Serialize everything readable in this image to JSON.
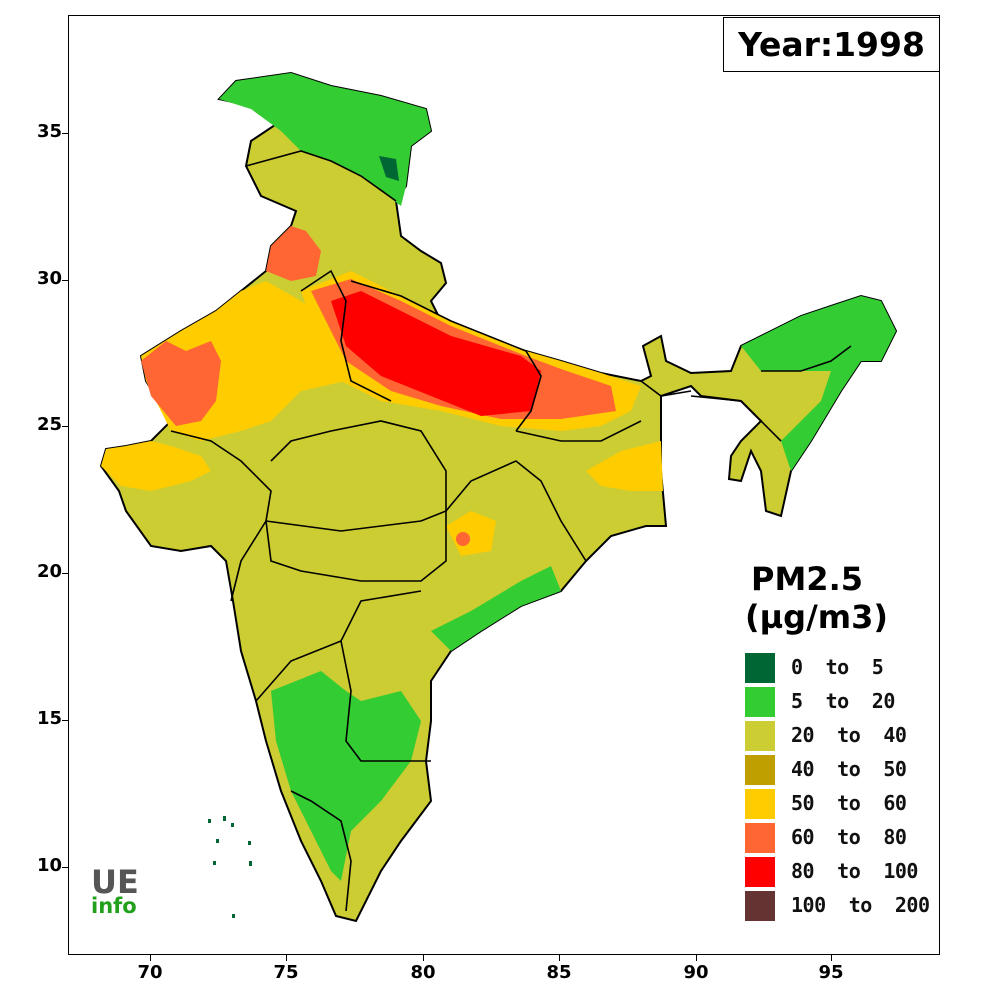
{
  "year_label": "Year:1998",
  "legend": {
    "title_line1": "PM2.5",
    "title_line2": "(µg/m3)",
    "items": [
      {
        "label": "0  to  5",
        "color": "#006633"
      },
      {
        "label": "5  to  20",
        "color": "#33cc33"
      },
      {
        "label": "20  to  40",
        "color": "#cccc33"
      },
      {
        "label": "40  to  50",
        "color": "#bf9f00"
      },
      {
        "label": "50  to  60",
        "color": "#ffcc00"
      },
      {
        "label": "60  to  80",
        "color": "#ff6633"
      },
      {
        "label": "80  to  100",
        "color": "#ff0000"
      },
      {
        "label": "100  to  200",
        "color": "#663333"
      }
    ]
  },
  "axes": {
    "x_ticks": [
      "70",
      "75",
      "80",
      "85",
      "90",
      "95"
    ],
    "y_ticks": [
      "35",
      "30",
      "25",
      "20",
      "15",
      "10"
    ]
  },
  "logo": {
    "line1": "UE",
    "line2": "info"
  },
  "icons": {
    "map": "india-pm25-map"
  }
}
